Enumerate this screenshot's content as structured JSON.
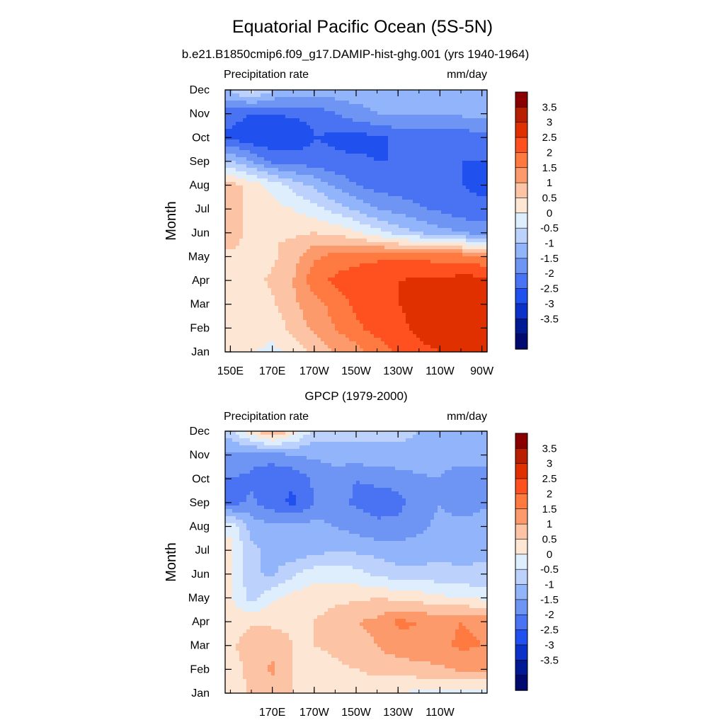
{
  "figure": {
    "title": "Equatorial Pacific Ocean (5S-5N)",
    "subtitle": "b.e21.B1850cmip6.f09_g17.DAMIP-hist-ghg.001 (yrs 1940-1964)"
  },
  "colorbar": {
    "labels": [
      "3.5",
      "3",
      "2.5",
      "2",
      "1.5",
      "1",
      "0.5",
      "0",
      "-0.5",
      "-1",
      "-1.5",
      "-2",
      "-2.5",
      "-3",
      "-3.5"
    ],
    "colors": [
      "#8a0000",
      "#b81e00",
      "#e03000",
      "#ff5020",
      "#ff7a40",
      "#fc9a6c",
      "#fcc4a4",
      "#fde6d4",
      "#dfeefc",
      "#bcd2fc",
      "#92b4fa",
      "#6e94f4",
      "#4a73f4",
      "#2050ee",
      "#0a32c8",
      "#001a96",
      "#000a6e"
    ]
  },
  "chart_data": [
    {
      "type": "heatmap",
      "panel_title": "",
      "left_label": "Precipitation rate",
      "right_label": "mm/day",
      "xlabel": "",
      "ylabel": "Month",
      "x_ticks": [
        "150E",
        "170E",
        "170W",
        "150W",
        "130W",
        "110W",
        "90W"
      ],
      "y_ticks": [
        "Jan",
        "Feb",
        "Mar",
        "Apr",
        "May",
        "Jun",
        "Jul",
        "Aug",
        "Sep",
        "Oct",
        "Nov",
        "Dec"
      ],
      "x_values_deg_east": [
        150,
        160,
        170,
        180,
        190,
        200,
        210,
        220,
        230,
        240,
        250,
        260,
        270
      ],
      "levels": [
        -3.5,
        -3,
        -2.5,
        -2,
        -1.5,
        -1,
        -0.5,
        0,
        0.5,
        1,
        1.5,
        2,
        2.5,
        3,
        3.5
      ],
      "z": [
        [
          0.8,
          0.5,
          0.4,
          0.6,
          1.2,
          1.5,
          1.8,
          2.2,
          2.6,
          2.9,
          3.0,
          3.1,
          3.1
        ],
        [
          1.0,
          0.8,
          0.6,
          1.2,
          1.6,
          2.0,
          2.4,
          2.7,
          2.9,
          3.1,
          3.2,
          3.3,
          3.3
        ],
        [
          0.9,
          0.6,
          0.9,
          1.4,
          1.8,
          2.2,
          2.6,
          2.9,
          3.0,
          3.1,
          3.3,
          3.4,
          3.5
        ],
        [
          1.0,
          0.8,
          1.1,
          1.5,
          2.3,
          2.6,
          2.8,
          2.9,
          3.0,
          3.1,
          3.1,
          3.2,
          3.2
        ],
        [
          0.9,
          0.8,
          0.9,
          1.3,
          1.9,
          2.2,
          2.3,
          2.4,
          2.4,
          2.4,
          2.3,
          2.3,
          2.1
        ],
        [
          1.3,
          0.8,
          1.0,
          0.9,
          1.0,
          0.9,
          0.6,
          0.2,
          -0.2,
          -0.5,
          -0.8,
          -1.0,
          -1.2
        ],
        [
          1.2,
          0.9,
          0.7,
          0.5,
          0.2,
          -0.2,
          -0.6,
          -1.0,
          -1.2,
          -1.4,
          -1.6,
          -1.8,
          -1.9
        ],
        [
          1.2,
          0.8,
          0.3,
          -0.2,
          -0.6,
          -1.1,
          -1.5,
          -1.7,
          -1.8,
          -1.9,
          -2.0,
          -2.0,
          -2.1
        ],
        [
          -0.4,
          -1.0,
          -1.6,
          -1.7,
          -1.8,
          -1.9,
          -1.9,
          -2.0,
          -2.0,
          -2.0,
          -2.0,
          -2.0,
          -2.0
        ],
        [
          -2.1,
          -2.4,
          -2.5,
          -2.4,
          -2.0,
          -2.1,
          -2.2,
          -2.1,
          -1.9,
          -1.8,
          -1.8,
          -1.8,
          -1.7
        ],
        [
          -1.8,
          -2.0,
          -2.0,
          -1.9,
          -1.9,
          -1.5,
          -1.2,
          -1.0,
          -0.9,
          -0.9,
          -0.9,
          -0.9,
          -0.8
        ],
        [
          -0.4,
          0.2,
          -0.4,
          -0.6,
          -0.7,
          -0.7,
          -0.7,
          -0.7,
          -0.7,
          -0.7,
          -0.7,
          -0.7,
          -0.7
        ]
      ]
    },
    {
      "type": "heatmap",
      "panel_title": "GPCP (1979-2000)",
      "left_label": "Precipitation rate",
      "right_label": "mm/day",
      "xlabel": "",
      "ylabel": "Month",
      "x_ticks": [
        "170E",
        "170W",
        "150W",
        "130W",
        "110W"
      ],
      "y_ticks": [
        "Jan",
        "Feb",
        "Mar",
        "Apr",
        "May",
        "Jun",
        "Jul",
        "Aug",
        "Sep",
        "Oct",
        "Nov",
        "Dec"
      ],
      "x_values_deg_east": [
        150,
        160,
        170,
        180,
        190,
        200,
        210,
        220,
        230,
        240,
        250,
        260,
        270
      ],
      "levels": [
        -3.5,
        -3,
        -2.5,
        -2,
        -1.5,
        -1,
        -0.5,
        0,
        0.5,
        1,
        1.5,
        2,
        2.5,
        3,
        3.5
      ],
      "z": [
        [
          0.6,
          1.1,
          1.3,
          1.0,
          0.7,
          0.5,
          0.5,
          0.6,
          0.5,
          0.4,
          0.4,
          0.3,
          0.3
        ],
        [
          0.7,
          1.2,
          1.6,
          1.0,
          0.8,
          0.9,
          1.0,
          1.2,
          1.2,
          1.3,
          1.4,
          1.6,
          1.6
        ],
        [
          0.9,
          1.3,
          1.3,
          1.0,
          1.0,
          1.1,
          1.3,
          1.5,
          1.8,
          1.9,
          1.9,
          2.1,
          2.0
        ],
        [
          0.7,
          0.9,
          0.9,
          0.9,
          1.0,
          1.2,
          1.5,
          1.6,
          2.1,
          2.0,
          1.8,
          2.0,
          1.9
        ],
        [
          0.6,
          -0.2,
          0.4,
          0.7,
          0.8,
          0.9,
          0.9,
          1.0,
          0.9,
          0.8,
          0.6,
          0.5,
          0.4
        ],
        [
          0.6,
          -0.4,
          -0.6,
          -0.1,
          0.3,
          0.3,
          0.2,
          -0.1,
          -0.3,
          -0.3,
          -0.3,
          -0.4,
          -0.4
        ],
        [
          0.6,
          -0.4,
          -0.6,
          -0.9,
          -0.7,
          -0.5,
          -0.6,
          -0.7,
          -0.8,
          -0.8,
          -0.7,
          -0.7,
          -0.6
        ],
        [
          0.4,
          -0.7,
          -0.9,
          -0.9,
          -0.8,
          -1.0,
          -1.2,
          -1.4,
          -1.3,
          -1.1,
          -0.9,
          -0.8,
          -0.8
        ],
        [
          -1.7,
          -1.4,
          -1.8,
          -2.1,
          -1.5,
          -1.3,
          -1.6,
          -1.7,
          -1.7,
          -1.2,
          -1.0,
          -1.3,
          -1.1
        ],
        [
          -1.5,
          -1.6,
          -2.0,
          -1.9,
          -1.4,
          -1.2,
          -1.5,
          -1.4,
          -1.3,
          -1.1,
          -1.0,
          -1.4,
          -1.2
        ],
        [
          -1.2,
          -1.3,
          -1.2,
          -1.0,
          -0.9,
          -0.8,
          -0.7,
          -0.6,
          -0.6,
          -0.6,
          -0.7,
          -0.7,
          -0.8
        ],
        [
          -0.1,
          0.8,
          1.6,
          0.8,
          -0.2,
          -0.3,
          -0.3,
          -0.4,
          -0.4,
          -0.5,
          -0.5,
          -0.6,
          -0.6
        ]
      ]
    }
  ]
}
